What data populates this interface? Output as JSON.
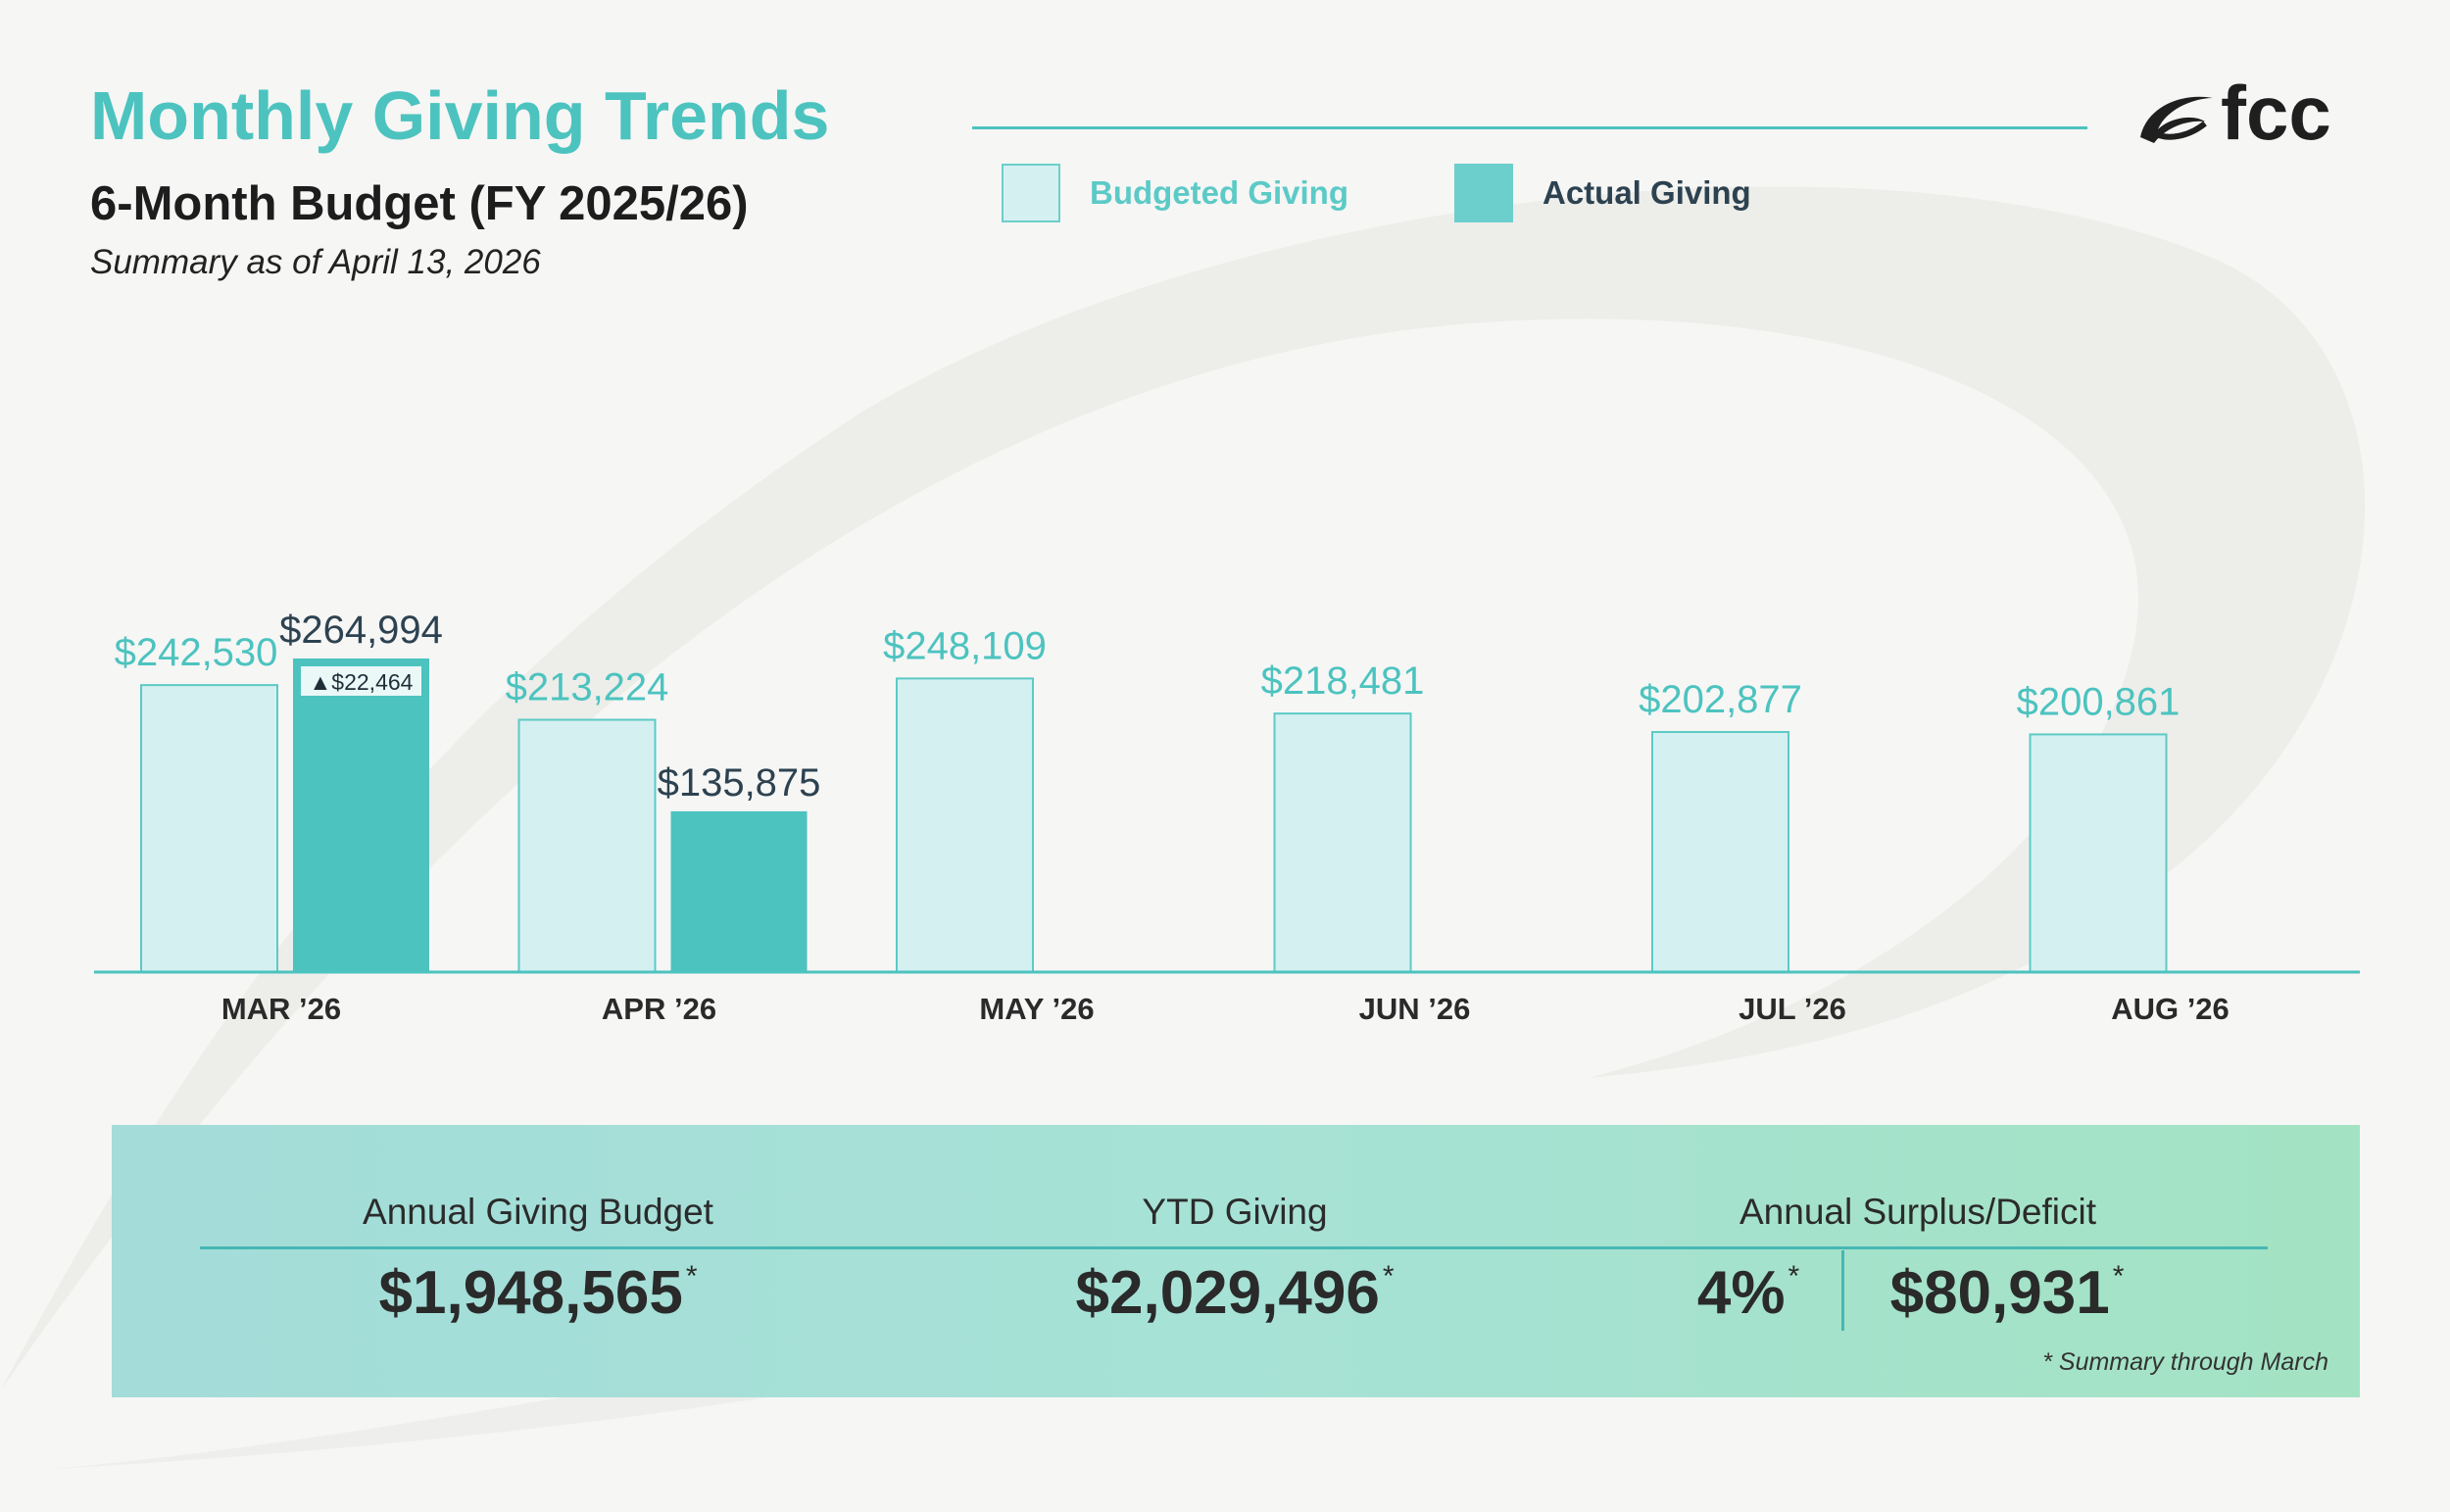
{
  "header": {
    "title": "Monthly Giving Trends",
    "subtitle": "6-Month Budget (FY 2025/26)",
    "summary_date": "Summary as of April 13, 2026"
  },
  "logo": {
    "text": "fcc",
    "icon": "swoosh-logo-icon"
  },
  "colors": {
    "budget_fill": "#d5f0f1",
    "budget_stroke": "#5ccac6",
    "actual_fill": "#4cc3bf",
    "budget_label": "#4cc3bf",
    "actual_label": "#2d4250",
    "axis": "#4cc3bf"
  },
  "chart_data": {
    "type": "bar",
    "title": "Monthly Giving Trends",
    "xlabel": "",
    "ylabel": "",
    "grid": false,
    "legend_position": "top-right",
    "categories": [
      "MAR ’26",
      "APR ’26",
      "MAY ’26",
      "JUN ’26",
      "JUL ’26",
      "AUG ’26"
    ],
    "series": [
      {
        "name": "Budgeted Giving",
        "values": [
          242530,
          213224,
          248109,
          218481,
          202877,
          200861
        ],
        "labels": [
          "$242,530",
          "$213,224",
          "$248,109",
          "$218,481",
          "$202,877",
          "$200,861"
        ]
      },
      {
        "name": "Actual Giving",
        "values": [
          264994,
          135875,
          null,
          null,
          null,
          null
        ],
        "labels": [
          "$264,994",
          "$135,875",
          null,
          null,
          null,
          null
        ]
      }
    ],
    "annotations": [
      {
        "category": "MAR ’26",
        "text": "▲$22,464",
        "value": 22464
      }
    ],
    "ylim": [
      0,
      264994
    ]
  },
  "summary": {
    "budget_label": "Annual Giving Budget",
    "budget_value": "$1,948,565",
    "ytd_label": "YTD Giving",
    "ytd_value": "$2,029,496",
    "surplus_label": "Annual Surplus/Deficit",
    "surplus_percent": "4%",
    "surplus_value": "$80,931",
    "asterisk": "*",
    "footnote": "*  Summary through March"
  }
}
